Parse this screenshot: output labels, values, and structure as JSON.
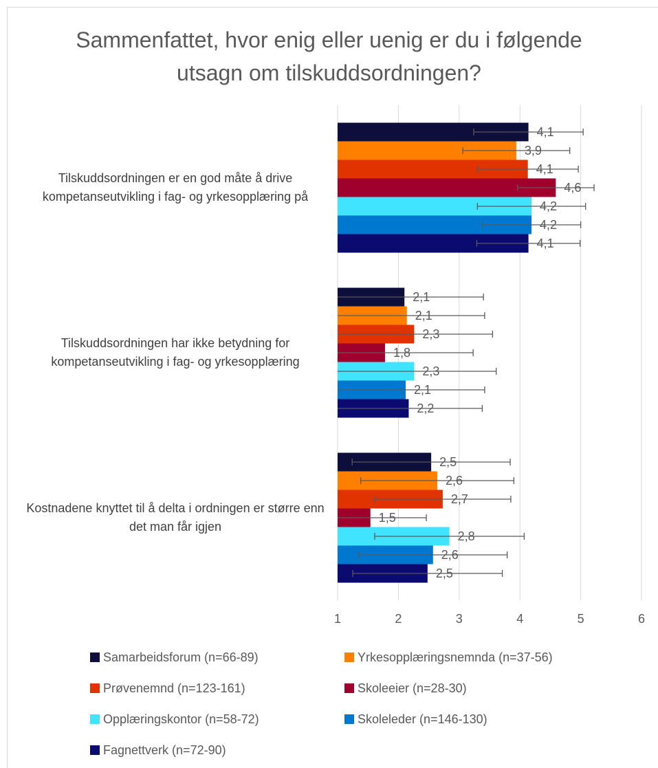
{
  "chart_data": {
    "type": "barh",
    "title": "Sammenfattet, hvor enig eller uenig er du i følgende utsagn om tilskuddsordningen?",
    "categories": [
      "Tilskuddsordningen er en god måte å drive kompetanseutvikling i fag- og yrkesopplæring på",
      "Tilskuddsordningen har ikke betydning for kompetanseutvikling i fag- og yrkesopplæring",
      "Kostnadene knyttet til å delta i ordningen er større enn det man får igjen"
    ],
    "series": [
      {
        "name": "Samarbeidsforum (n=66-89)",
        "color": "#0e0e3c",
        "values": [
          4.14,
          2.1,
          2.54
        ],
        "errors": [
          0.9,
          1.3,
          1.3
        ],
        "value_labels": [
          "4,1",
          "2,1",
          "2,5"
        ]
      },
      {
        "name": "Yrkesopplæringsnemnda (n=37-56)",
        "color": "#ff8000",
        "values": [
          3.94,
          2.14,
          2.64
        ],
        "errors": [
          0.88,
          1.28,
          1.26
        ],
        "value_labels": [
          "3,9",
          "2,1",
          "2,6"
        ]
      },
      {
        "name": "Prøvenemnd (n=123-161)",
        "color": "#e03300",
        "values": [
          4.13,
          2.26,
          2.73
        ],
        "errors": [
          0.83,
          1.29,
          1.12
        ],
        "value_labels": [
          "4,1",
          "2,3",
          "2,7"
        ]
      },
      {
        "name": "Skoleeier (n=28-30)",
        "color": "#a0002c",
        "values": [
          4.59,
          1.78,
          1.54
        ],
        "errors": [
          0.63,
          1.45,
          0.92
        ],
        "value_labels": [
          "4,6",
          "1,8",
          "1,5"
        ]
      },
      {
        "name": "Opplæringskontor (n=58-72)",
        "color": "#40e4ff",
        "values": [
          4.19,
          2.26,
          2.84
        ],
        "errors": [
          0.89,
          1.35,
          1.23
        ],
        "value_labels": [
          "4,2",
          "2,3",
          "2,8"
        ]
      },
      {
        "name": "Skoleleder (n=146-130)",
        "color": "#0078d0",
        "values": [
          4.19,
          2.12,
          2.57
        ],
        "errors": [
          0.81,
          1.3,
          1.22
        ],
        "value_labels": [
          "4,2",
          "2,1",
          "2,6"
        ]
      },
      {
        "name": "Fagnettverk (n=72-90)",
        "color": "#0a0a70",
        "values": [
          4.14,
          2.17,
          2.48
        ],
        "errors": [
          0.85,
          1.21,
          1.23
        ],
        "value_labels": [
          "4,1",
          "2,2",
          "2,5"
        ]
      }
    ],
    "xlim": [
      1,
      6
    ],
    "xticks": [
      1,
      2,
      3,
      4,
      5,
      6
    ],
    "grid": true
  }
}
